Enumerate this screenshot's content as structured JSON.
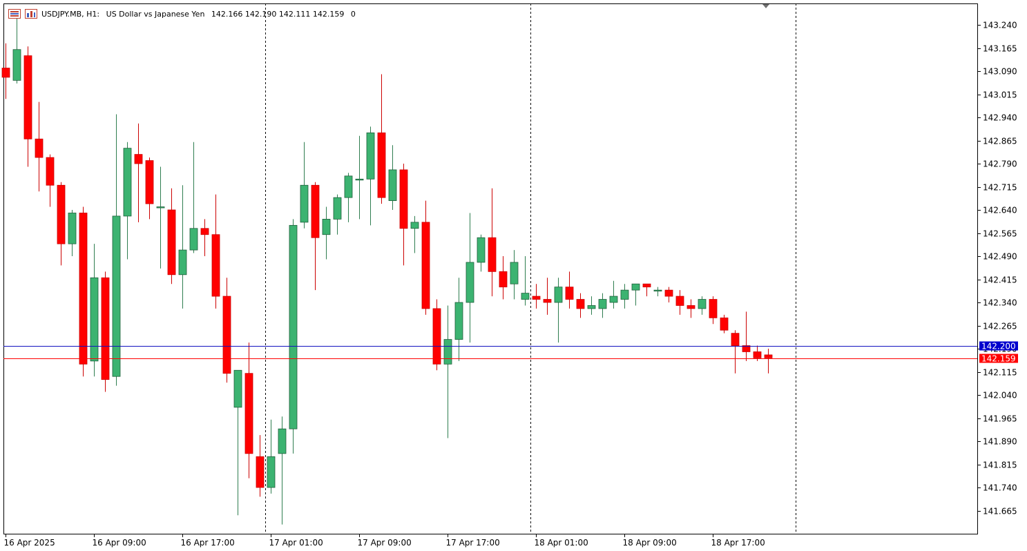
{
  "header": {
    "symbol": "USDJPY.MB, H1:",
    "description": "US Dollar vs Japanese Yen",
    "ohlc": "142.166 142.190 142.111 142.159",
    "volume": "0"
  },
  "icons": [
    "symbol-list-icon",
    "indicator-list-icon"
  ],
  "colors": {
    "bull": "#3cb371",
    "bear": "#ff0000",
    "bid_line": "#ff0000",
    "ask_line": "#1010c0",
    "bid_label_bg": "#ff0000",
    "ask_label_bg": "#0000cd",
    "grid_separator": "#000000",
    "axis": "#000000"
  },
  "price_labels": {
    "ask": "142.200",
    "bid": "142.159",
    "ask_value": 142.2,
    "bid_value": 142.159
  },
  "chart_data": {
    "type": "candlestick",
    "title": "USDJPY.MB, H1",
    "ylim": [
      141.61,
      143.29
    ],
    "y_ticks": [
      "143.240",
      "143.165",
      "143.090",
      "143.015",
      "142.940",
      "142.865",
      "142.790",
      "142.715",
      "142.640",
      "142.565",
      "142.490",
      "142.415",
      "142.340",
      "142.265",
      "142.190",
      "142.115",
      "142.040",
      "141.965",
      "141.890",
      "141.815",
      "141.740",
      "141.665"
    ],
    "x_labels": [
      {
        "text": "16 Apr 2025",
        "index": 0
      },
      {
        "text": "16 Apr 09:00",
        "index": 8
      },
      {
        "text": "16 Apr 17:00",
        "index": 16
      },
      {
        "text": "17 Apr 01:00",
        "index": 24
      },
      {
        "text": "17 Apr 09:00",
        "index": 32
      },
      {
        "text": "17 Apr 17:00",
        "index": 40
      },
      {
        "text": "18 Apr 01:00",
        "index": 48
      },
      {
        "text": "18 Apr 09:00",
        "index": 56
      },
      {
        "text": "18 Apr 17:00",
        "index": 64
      }
    ],
    "day_separators": [
      23,
      47,
      71
    ],
    "candles": [
      [
        143.1,
        143.18,
        143.0,
        143.07
      ],
      [
        143.06,
        143.27,
        143.05,
        143.16
      ],
      [
        143.14,
        143.17,
        142.78,
        142.87
      ],
      [
        142.87,
        142.99,
        142.7,
        142.81
      ],
      [
        142.81,
        142.82,
        142.65,
        142.72
      ],
      [
        142.72,
        142.73,
        142.46,
        142.53
      ],
      [
        142.53,
        142.64,
        142.49,
        142.63
      ],
      [
        142.63,
        142.65,
        142.1,
        142.14
      ],
      [
        142.15,
        142.53,
        142.1,
        142.42
      ],
      [
        142.42,
        142.44,
        142.05,
        142.09
      ],
      [
        142.1,
        142.95,
        142.07,
        142.62
      ],
      [
        142.62,
        142.86,
        142.48,
        142.84
      ],
      [
        142.82,
        142.92,
        142.6,
        142.79
      ],
      [
        142.8,
        142.81,
        142.61,
        142.66
      ],
      [
        142.65,
        142.78,
        142.45,
        142.65
      ],
      [
        142.64,
        142.71,
        142.4,
        142.43
      ],
      [
        142.43,
        142.72,
        142.32,
        142.51
      ],
      [
        142.51,
        142.86,
        142.5,
        142.58
      ],
      [
        142.58,
        142.61,
        142.49,
        142.56
      ],
      [
        142.56,
        142.69,
        142.32,
        142.36
      ],
      [
        142.36,
        142.42,
        142.08,
        142.11
      ],
      [
        142.0,
        142.12,
        141.65,
        142.12
      ],
      [
        142.11,
        142.21,
        141.77,
        141.85
      ],
      [
        141.84,
        141.91,
        141.71,
        141.74
      ],
      [
        141.74,
        141.96,
        141.72,
        141.84
      ],
      [
        141.85,
        141.97,
        141.62,
        141.93
      ],
      [
        141.93,
        142.61,
        141.85,
        142.59
      ],
      [
        142.6,
        142.86,
        142.58,
        142.72
      ],
      [
        142.72,
        142.73,
        142.38,
        142.55
      ],
      [
        142.56,
        142.65,
        142.48,
        142.61
      ],
      [
        142.61,
        142.69,
        142.56,
        142.68
      ],
      [
        142.68,
        142.76,
        142.6,
        142.75
      ],
      [
        142.74,
        142.88,
        142.61,
        142.74
      ],
      [
        142.74,
        142.91,
        142.59,
        142.89
      ],
      [
        142.89,
        143.08,
        142.66,
        142.68
      ],
      [
        142.67,
        142.85,
        142.64,
        142.77
      ],
      [
        142.77,
        142.79,
        142.46,
        142.58
      ],
      [
        142.58,
        142.62,
        142.5,
        142.6
      ],
      [
        142.6,
        142.67,
        142.3,
        142.32
      ],
      [
        142.32,
        142.35,
        142.12,
        142.14
      ],
      [
        142.14,
        142.33,
        141.9,
        142.22
      ],
      [
        142.22,
        142.42,
        142.15,
        142.34
      ],
      [
        142.34,
        142.63,
        142.21,
        142.47
      ],
      [
        142.47,
        142.56,
        142.44,
        142.55
      ],
      [
        142.55,
        142.71,
        142.36,
        142.44
      ],
      [
        142.44,
        142.49,
        142.35,
        142.39
      ],
      [
        142.4,
        142.51,
        142.35,
        142.47
      ],
      [
        142.35,
        142.49,
        142.33,
        142.37
      ],
      [
        142.36,
        142.4,
        142.32,
        142.35
      ],
      [
        142.35,
        142.42,
        142.3,
        142.34
      ],
      [
        142.34,
        142.42,
        142.21,
        142.39
      ],
      [
        142.39,
        142.44,
        142.32,
        142.35
      ],
      [
        142.35,
        142.37,
        142.29,
        142.32
      ],
      [
        142.32,
        142.36,
        142.3,
        142.33
      ],
      [
        142.32,
        142.37,
        142.29,
        142.35
      ],
      [
        142.34,
        142.41,
        142.32,
        142.36
      ],
      [
        142.35,
        142.4,
        142.32,
        142.38
      ],
      [
        142.38,
        142.4,
        142.33,
        142.4
      ],
      [
        142.4,
        142.4,
        142.36,
        142.39
      ],
      [
        142.38,
        142.39,
        142.36,
        142.38
      ],
      [
        142.38,
        142.39,
        142.34,
        142.36
      ],
      [
        142.36,
        142.38,
        142.3,
        142.33
      ],
      [
        142.33,
        142.35,
        142.29,
        142.32
      ],
      [
        142.32,
        142.36,
        142.3,
        142.35
      ],
      [
        142.35,
        142.36,
        142.27,
        142.29
      ],
      [
        142.29,
        142.3,
        142.24,
        142.25
      ],
      [
        142.24,
        142.25,
        142.11,
        142.2
      ],
      [
        142.2,
        142.31,
        142.15,
        142.18
      ],
      [
        142.18,
        142.2,
        142.15,
        142.16
      ],
      [
        142.17,
        142.19,
        142.11,
        142.16
      ]
    ]
  }
}
